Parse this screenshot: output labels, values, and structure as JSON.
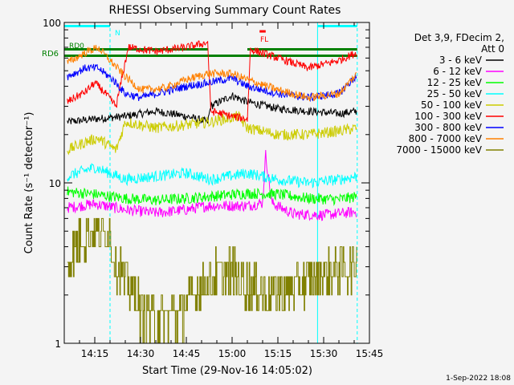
{
  "chart_data": {
    "type": "line",
    "title": "RHESSI Observing Summary Count Rates",
    "xlabel": "Start Time (29-Nov-16 14:05:02)",
    "ylabel": "Count Rate (s⁻¹ detector⁻¹)",
    "y_scale": "log",
    "ylim": [
      1,
      100
    ],
    "xlim": [
      "14:05",
      "15:45"
    ],
    "x_ticks": [
      "14:15",
      "14:30",
      "14:45",
      "15:00",
      "15:15",
      "15:30",
      "15:45"
    ],
    "y_ticks": [
      "1",
      "10",
      "100"
    ],
    "grid": false,
    "legend_placement": "right",
    "legend_header": [
      "Det 3,9, FDecim 2,",
      "Att 0"
    ],
    "series": [
      {
        "name": "3 - 6 keV",
        "color": "#000000",
        "x": [
          "14:06",
          "14:15",
          "14:25",
          "14:35",
          "14:45",
          "14:52",
          "14:53",
          "15:00",
          "15:05",
          "15:15",
          "15:25",
          "15:35",
          "15:41"
        ],
        "values": [
          24,
          25,
          26,
          28,
          26,
          24,
          30,
          35,
          32,
          29,
          28,
          27,
          28
        ]
      },
      {
        "name": "6 - 12 keV",
        "color": "#ff00ff",
        "x": [
          "14:06",
          "14:15",
          "14:25",
          "14:35",
          "14:45",
          "14:52",
          "15:05",
          "15:10",
          "15:11",
          "15:13",
          "15:20",
          "15:30",
          "15:41"
        ],
        "values": [
          7,
          7.4,
          6.8,
          6.5,
          6.8,
          7.2,
          7.2,
          7.5,
          15,
          7.5,
          6.4,
          6.3,
          6.6
        ]
      },
      {
        "name": "12 - 25 keV",
        "color": "#00ff00",
        "x": [
          "14:06",
          "14:15",
          "14:25",
          "14:35",
          "14:45",
          "14:55",
          "15:05",
          "15:15",
          "15:25",
          "15:35",
          "15:41"
        ],
        "values": [
          8.8,
          8.5,
          8.0,
          7.8,
          8.0,
          8.3,
          8.6,
          8.5,
          8.0,
          7.9,
          8.2
        ]
      },
      {
        "name": "25 - 50 keV",
        "color": "#00ffff",
        "x": [
          "14:06",
          "14:15",
          "14:25",
          "14:35",
          "14:45",
          "14:53",
          "15:05",
          "15:15",
          "15:25",
          "15:35",
          "15:41"
        ],
        "values": [
          11,
          12.5,
          10.5,
          11,
          11.5,
          10.5,
          11.5,
          10.5,
          10,
          10.5,
          11
        ]
      },
      {
        "name": "50 - 100 keV",
        "color": "#cccc00",
        "x": [
          "14:06",
          "14:12",
          "14:16",
          "14:22",
          "14:25",
          "14:35",
          "14:45",
          "14:53",
          "15:02",
          "15:05",
          "15:15",
          "15:25",
          "15:35",
          "15:41"
        ],
        "values": [
          16,
          18,
          19,
          16,
          24,
          22,
          23,
          24,
          26,
          22,
          20,
          20,
          21,
          22
        ]
      },
      {
        "name": "100 - 300 keV",
        "color": "#ff0000",
        "x": [
          "14:06",
          "14:12",
          "14:15",
          "14:18",
          "14:22",
          "14:26",
          "14:35",
          "14:45",
          "14:52",
          "14:53",
          "15:00",
          "15:05",
          "15:06",
          "15:15",
          "15:25",
          "15:35",
          "15:41"
        ],
        "values": [
          32,
          37,
          42,
          37,
          30,
          70,
          66,
          70,
          75,
          28,
          26,
          25,
          68,
          60,
          52,
          58,
          65
        ]
      },
      {
        "name": "300 - 800 keV",
        "color": "#0000ff",
        "x": [
          "14:06",
          "14:12",
          "14:16",
          "14:21",
          "14:25",
          "14:30",
          "14:38",
          "14:45",
          "14:52",
          "15:00",
          "15:05",
          "15:15",
          "15:25",
          "15:35",
          "15:41"
        ],
        "values": [
          46,
          52,
          52,
          44,
          36,
          34,
          37,
          40,
          42,
          45,
          40,
          36,
          34,
          36,
          47
        ]
      },
      {
        "name": "800 - 7000 keV",
        "color": "#ff8000",
        "x": [
          "14:06",
          "14:12",
          "14:16",
          "14:20",
          "14:25",
          "14:30",
          "14:38",
          "14:45",
          "14:52",
          "15:00",
          "15:05",
          "15:15",
          "15:25",
          "15:35",
          "15:41"
        ],
        "values": [
          56,
          65,
          70,
          58,
          46,
          38,
          39,
          44,
          48,
          48,
          44,
          38,
          34,
          36,
          48
        ]
      },
      {
        "name": "7000 - 15000 keV",
        "color": "#808000",
        "x": [
          "14:06",
          "14:10",
          "14:15",
          "14:20",
          "14:21",
          "14:25",
          "14:28",
          "14:30",
          "14:38",
          "14:45",
          "14:50",
          "14:55",
          "15:00",
          "15:05",
          "15:12",
          "15:20",
          "15:25",
          "15:30",
          "15:35",
          "15:41"
        ],
        "values": [
          3.2,
          4.5,
          5.2,
          4.8,
          3.4,
          2.5,
          2.0,
          1.6,
          1.4,
          1.7,
          2.3,
          2.7,
          2.8,
          2.3,
          2.0,
          2.2,
          2.5,
          2.8,
          2.9,
          3.0
        ]
      }
    ],
    "flags": [
      {
        "name": "N",
        "color": "#00ffff",
        "level": 95,
        "segments": [
          [
            "14:05",
            "14:20"
          ],
          [
            "15:28",
            "15:41"
          ]
        ]
      },
      {
        "name": "RD0",
        "color": "#008000",
        "level": 68,
        "segments": [
          [
            "14:05",
            "14:52"
          ],
          [
            "15:05",
            "15:41"
          ]
        ]
      },
      {
        "name": "RD6",
        "color": "#008000",
        "level": 62,
        "segments": [
          [
            "14:05",
            "15:41"
          ]
        ]
      },
      {
        "name": "FL",
        "color": "#ff0000",
        "level": 88,
        "segments": [
          [
            "15:09",
            "15:11"
          ]
        ]
      }
    ],
    "flag_labels": {
      "n": "N",
      "rd0": "RD0",
      "rd6": "RD6",
      "fl": "FL"
    },
    "vertical_markers": [
      {
        "time": "14:05",
        "color": "#00ffff",
        "style": "solid"
      },
      {
        "time": "14:20",
        "color": "#00ffff",
        "style": "dashed"
      },
      {
        "time": "15:28",
        "color": "#00ffff",
        "style": "solid"
      },
      {
        "time": "15:41",
        "color": "#00ffff",
        "style": "dashed"
      }
    ]
  },
  "footer": {
    "date": "1-Sep-2022 18:08"
  }
}
